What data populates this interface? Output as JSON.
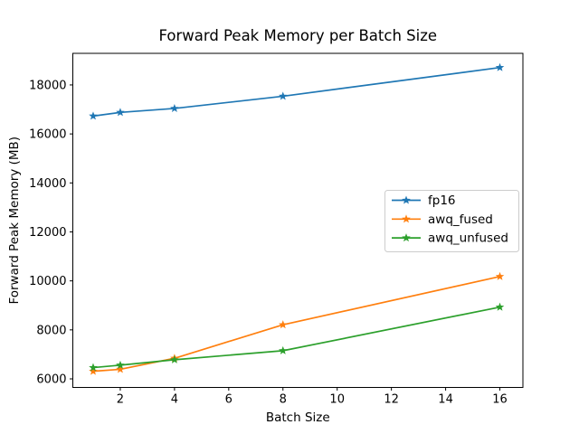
{
  "figure": {
    "background": "#ffffff"
  },
  "chart_data": {
    "type": "line",
    "title": "Forward Peak Memory per Batch Size",
    "xlabel": "Batch Size",
    "ylabel": "Forward Peak Memory (MB)",
    "x": [
      1,
      2,
      4,
      8,
      16
    ],
    "series": [
      {
        "name": "fp16",
        "color": "#1f77b4",
        "marker": "star",
        "values": [
          16730,
          16880,
          17040,
          17540,
          18710
        ]
      },
      {
        "name": "awq_fused",
        "color": "#ff7f0e",
        "marker": "star",
        "values": [
          6310,
          6390,
          6840,
          8210,
          10180
        ]
      },
      {
        "name": "awq_unfused",
        "color": "#2ca02c",
        "marker": "star",
        "values": [
          6460,
          6560,
          6780,
          7150,
          8930
        ]
      }
    ],
    "xlim": [
      0.25,
      16.85
    ],
    "ylim": [
      5650,
      19290
    ],
    "xticks": [
      2,
      4,
      6,
      8,
      10,
      12,
      14,
      16
    ],
    "yticks": [
      6000,
      8000,
      10000,
      12000,
      14000,
      16000,
      18000
    ],
    "grid": false,
    "axes_color": "#000000",
    "legend": {
      "position": "center-right",
      "entries": [
        "fp16",
        "awq_fused",
        "awq_unfused"
      ],
      "border_color": "#cccccc",
      "background": "#ffffff"
    }
  }
}
